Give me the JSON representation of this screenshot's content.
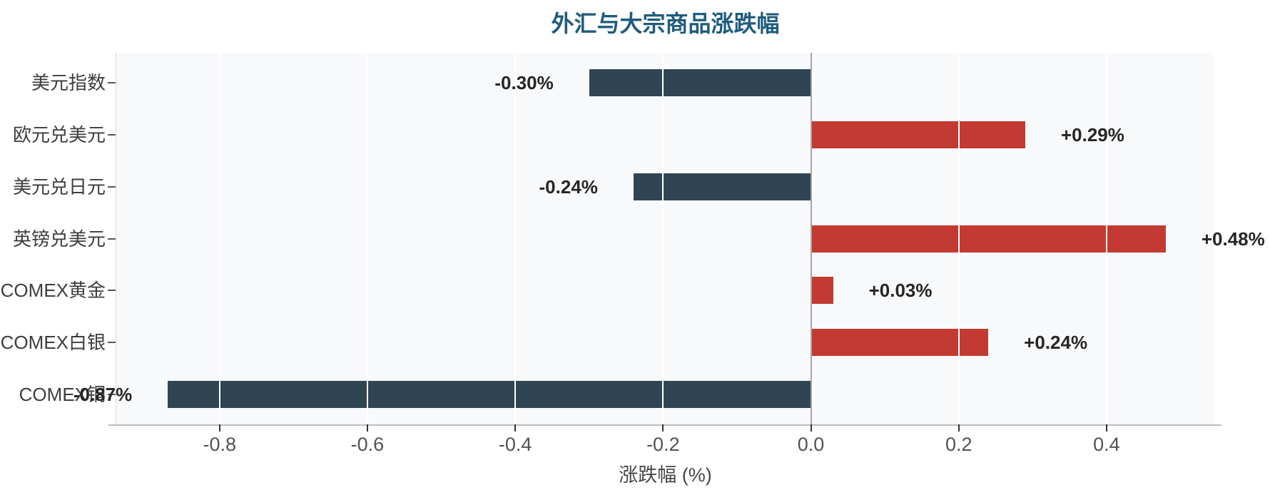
{
  "page": {
    "background": "#ffffff",
    "description": "Horizontal bar chart of forex and commodity percentage changes"
  },
  "chart_data": {
    "type": "bar",
    "orientation": "horizontal",
    "title": "外汇与大宗商品涨跌幅",
    "xlabel": "涨跌幅 (%)",
    "categories": [
      "美元指数",
      "欧元兑美元",
      "美元兑日元",
      "英镑兑美元",
      "COMEX黄金",
      "COMEX白银",
      "COMEX铜"
    ],
    "values": [
      -0.3,
      0.29,
      -0.24,
      0.48,
      0.03,
      0.24,
      -0.87
    ],
    "data_labels": [
      "-0.30%",
      "+0.29%",
      "-0.24%",
      "+0.48%",
      "+0.03%",
      "+0.24%",
      "-0.87%"
    ],
    "xlim": [
      -0.9397,
      0.5458
    ],
    "xticks": [
      -0.8,
      -0.6,
      -0.4,
      -0.2,
      0.0,
      0.2,
      0.4
    ],
    "xtick_labels": [
      "-0.8",
      "-0.6",
      "-0.4",
      "-0.2",
      "0.0",
      "0.2",
      "0.4"
    ],
    "legend_position": "none",
    "grid": "vertical white gridlines over light panel",
    "colors": {
      "positive_bar": "#c23a32",
      "negative_bar": "#2f4554",
      "title": "#1f5c7d",
      "panel_background": "#f8f9fb",
      "gridline": "#ffffff",
      "zero_line": "#a6a6a6",
      "value_label": "#262626",
      "category_label": "#3d3d3d",
      "tick_label": "#525252",
      "axis_label": "#474747",
      "x_tick_mark": "#333333",
      "y_tick_mark": "#555555"
    }
  }
}
